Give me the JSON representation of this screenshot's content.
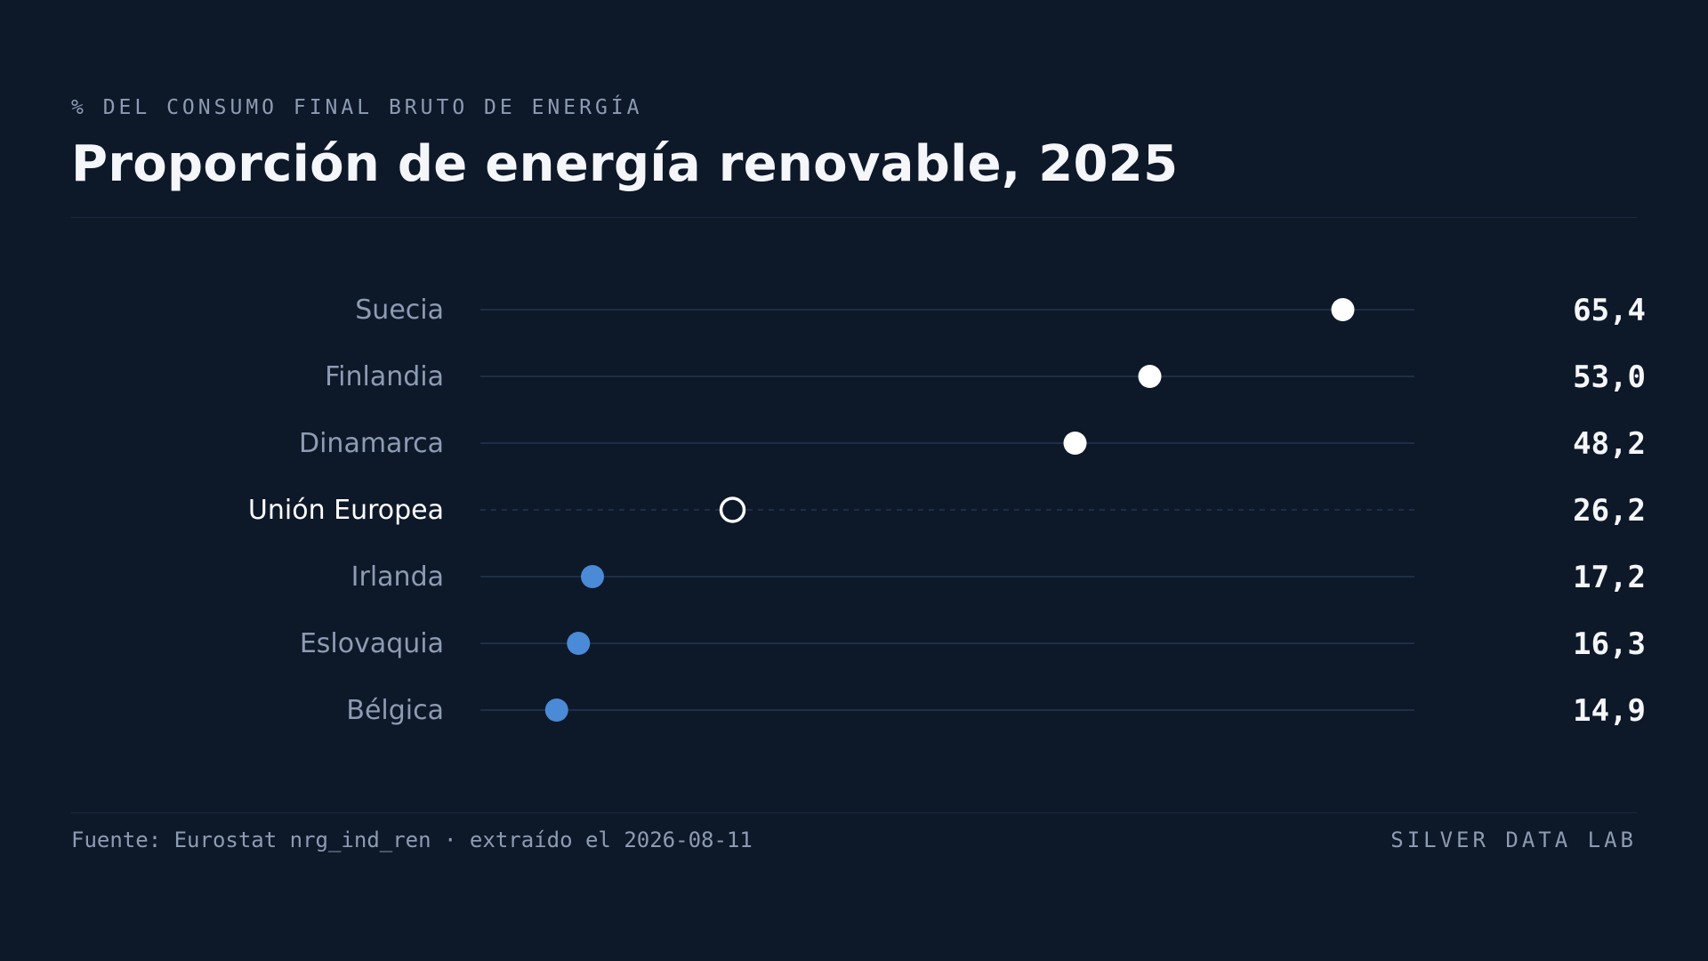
{
  "header": {
    "kicker": "% DEL CONSUMO FINAL BRUTO DE ENERGÍA",
    "title": "Proporción de energía renovable, 2025"
  },
  "footer": {
    "source": "Fuente: Eurostat nrg_ind_ren · extraído el 2026-08-11",
    "brand": "SILVER DATA LAB"
  },
  "colors": {
    "background": "#0d1829",
    "above_reference": "#ffffff",
    "below_reference": "#4a8ad6",
    "reference": "#ffffff",
    "track": "#1e2e46",
    "label": "#8d9bb3",
    "value": "#f4f6fa"
  },
  "chart_data": {
    "type": "dot",
    "title": "Proporción de energía renovable, 2025",
    "subtitle": "% DEL CONSUMO FINAL BRUTO DE ENERGÍA",
    "categories": [
      "Suecia",
      "Finlandia",
      "Dinamarca",
      "Unión Europea",
      "Irlanda",
      "Eslovaquia",
      "Bélgica"
    ],
    "values": [
      65.4,
      53.0,
      48.2,
      26.2,
      17.2,
      16.3,
      14.9
    ],
    "value_labels": [
      "65,4",
      "53,0",
      "48,2",
      "26,2",
      "17,2",
      "16,3",
      "14,9"
    ],
    "reference_category": "Unión Europea",
    "xlim": [
      10,
      70
    ],
    "grid": false
  }
}
